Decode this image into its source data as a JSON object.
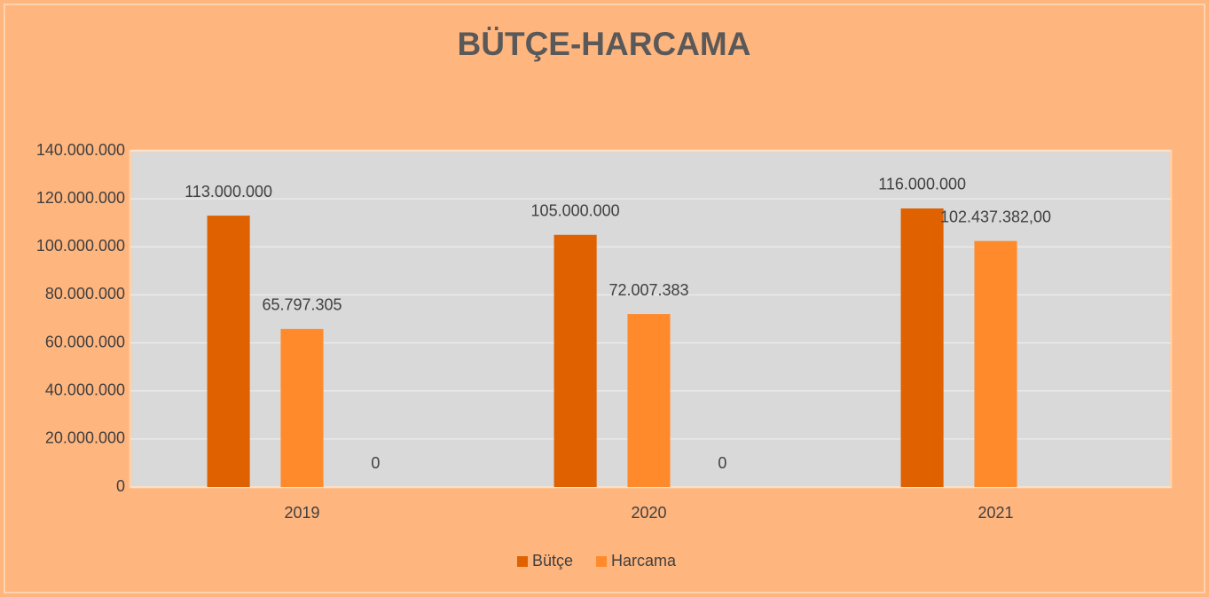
{
  "chart_data": {
    "type": "bar",
    "title": "BÜTÇE-HARCAMA",
    "categories": [
      "2019",
      "2020",
      "2021"
    ],
    "series": [
      {
        "name": "Bütçe",
        "color": "#df6100",
        "values": [
          113000000,
          105000000,
          116000000
        ],
        "value_labels": [
          "113.000.000",
          "105.000.000",
          "116.000.000"
        ]
      },
      {
        "name": "Harcama",
        "color": "#ff8a2b",
        "values": [
          65797305,
          72007383,
          102437382
        ],
        "value_labels": [
          "65.797.305",
          "72.007.383",
          "102.437.382,00"
        ]
      },
      {
        "values": [
          0,
          0,
          null
        ],
        "value_labels": [
          "0",
          "0",
          null
        ]
      }
    ],
    "ylim": [
      0,
      140000000
    ],
    "yticks": [
      0,
      {
        "value": 20000000,
        "label": "20.000.000"
      },
      {
        "value": 40000000,
        "label": "40.000.000"
      },
      {
        "value": 60000000,
        "label": "60.000.000"
      },
      {
        "value": 80000000,
        "label": "80.000.000"
      },
      {
        "value": 100000000,
        "label": "100.000.000"
      },
      {
        "value": 120000000,
        "label": "120.000.000"
      },
      {
        "value": 140000000,
        "label": "140.000.000"
      }
    ],
    "grid": true,
    "legend": "bottom"
  }
}
